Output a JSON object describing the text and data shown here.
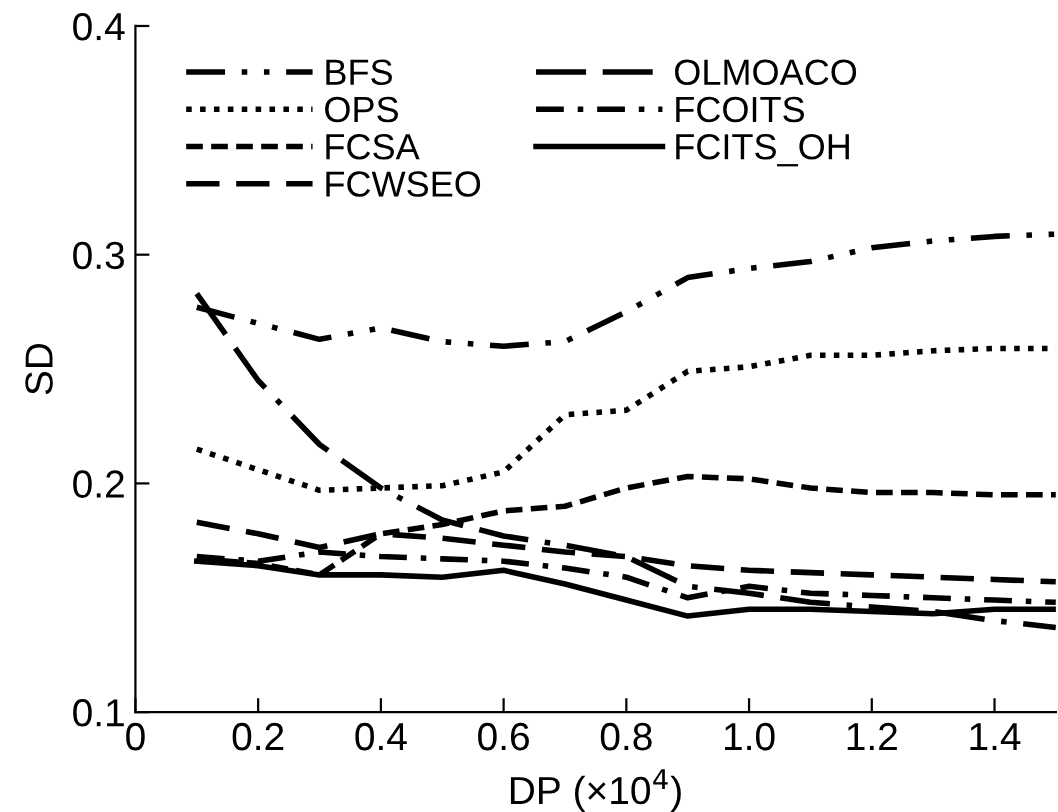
{
  "chart_data": {
    "type": "line",
    "xlabel": "DP (×10$^{4}$)",
    "ylabel": "SD",
    "x": [
      0.1,
      0.2,
      0.3,
      0.4,
      0.5,
      0.6,
      0.7,
      0.8,
      0.9,
      1.0,
      1.1,
      1.2,
      1.3,
      1.4,
      1.5
    ],
    "xlim": [
      0,
      1.5
    ],
    "ylim": [
      0.1,
      0.4
    ],
    "xticks": [
      0,
      0.2,
      0.4,
      0.6,
      0.8,
      {
        "value": 1,
        "label": "1.0"
      },
      1.2,
      1.4
    ],
    "yticks": [
      0.1,
      0.2,
      0.3,
      0.4
    ],
    "grid": false,
    "legend": "top",
    "marker": "none",
    "series": [
      {
        "name": "BFS",
        "color": "#000000",
        "line_style": "dashdotdot",
        "values": [
          0.277,
          0.27,
          0.263,
          0.268,
          0.262,
          0.26,
          0.262,
          0.275,
          0.29,
          0.294,
          0.297,
          0.303,
          0.306,
          0.308,
          0.309
        ]
      },
      {
        "name": "OPS",
        "color": "#000000",
        "line_style": "dotted",
        "values": [
          0.215,
          0.206,
          0.197,
          0.198,
          0.199,
          0.205,
          0.23,
          0.232,
          0.249,
          0.251,
          0.256,
          0.256,
          0.258,
          0.259,
          0.259
        ]
      },
      {
        "name": "FCSA",
        "color": "#000000",
        "line_style": "dashed",
        "values": [
          0.167,
          0.165,
          0.16,
          0.178,
          0.182,
          0.188,
          0.19,
          0.198,
          0.203,
          0.202,
          0.198,
          0.196,
          0.196,
          0.195,
          0.195
        ]
      },
      {
        "name": "FCWSEO",
        "color": "#000000",
        "line_style": "longdash",
        "values": [
          0.183,
          0.178,
          0.172,
          0.178,
          0.176,
          0.173,
          0.17,
          0.168,
          0.164,
          0.162,
          0.161,
          0.16,
          0.159,
          0.158,
          0.157
        ]
      },
      {
        "name": "OLMOACO",
        "color": "#000000",
        "line_style": "longdashdot",
        "values": [
          0.283,
          0.245,
          0.217,
          0.198,
          0.184,
          0.177,
          0.173,
          0.168,
          0.155,
          0.152,
          0.148,
          0.146,
          0.144,
          0.14,
          0.137
        ]
      },
      {
        "name": "FCOITS",
        "color": "#000000",
        "line_style": "dashdot",
        "values": [
          0.168,
          0.166,
          0.17,
          0.168,
          0.167,
          0.166,
          0.163,
          0.159,
          0.15,
          0.155,
          0.152,
          0.151,
          0.15,
          0.149,
          0.148
        ]
      },
      {
        "name": "FCITS_OH",
        "color": "#000000",
        "line_style": "solid",
        "values": [
          0.166,
          0.164,
          0.16,
          0.16,
          0.159,
          0.162,
          0.156,
          0.149,
          0.142,
          0.145,
          0.145,
          0.144,
          0.143,
          0.145,
          0.145
        ]
      }
    ]
  }
}
